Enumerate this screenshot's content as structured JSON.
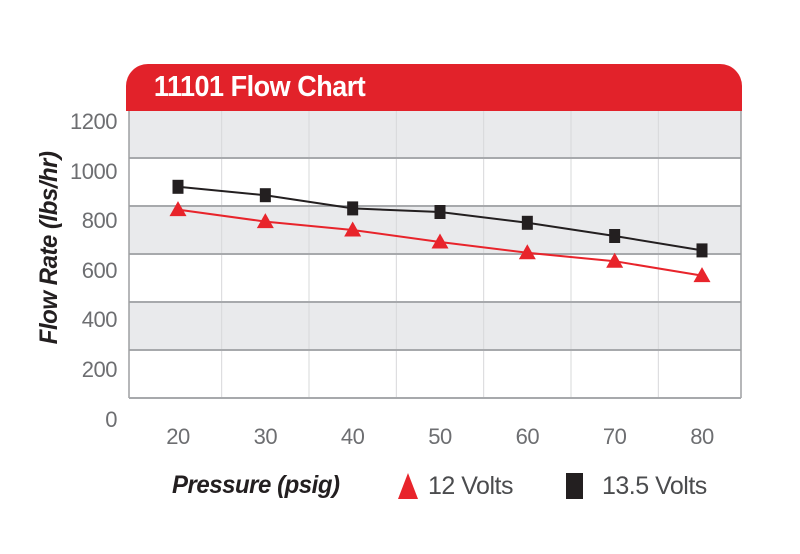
{
  "header": {
    "title": "11101 Flow Chart"
  },
  "chart_data": {
    "type": "line",
    "title": "11101 Flow Chart",
    "xlabel": "Pressure (psig)",
    "ylabel": "Flow Rate (lbs/hr)",
    "x": [
      20,
      30,
      40,
      50,
      60,
      70,
      80
    ],
    "x_tick_labels": [
      "20",
      "30",
      "40",
      "50",
      "60",
      "70",
      "80"
    ],
    "y_ticks": [
      1200,
      1000,
      800,
      600,
      400,
      200,
      0
    ],
    "ylim": [
      0,
      1200
    ],
    "grid": "horizontal major lines with alternating shaded bands; light vertical category separators",
    "legend_position": "bottom",
    "series": [
      {
        "name": "12 Volts",
        "marker": "triangle",
        "color": "#e8242b",
        "values": [
          785,
          735,
          700,
          650,
          605,
          570,
          510
        ]
      },
      {
        "name": "13.5 Volts",
        "marker": "square",
        "color": "#231f20",
        "values": [
          880,
          845,
          790,
          775,
          730,
          675,
          615
        ]
      }
    ]
  },
  "colors": {
    "header_red": "#e2222a",
    "band_gray": "#e9eaec",
    "band_white": "#ffffff",
    "grid_major": "#a7a9ac",
    "grid_minor": "#d7d8da",
    "plot_border": "#9d9fa2",
    "tick_text": "#6d6e71",
    "legend_text": "#4b4c4e",
    "axis_title_text": "#231f20",
    "title_text": "#ffffff"
  }
}
